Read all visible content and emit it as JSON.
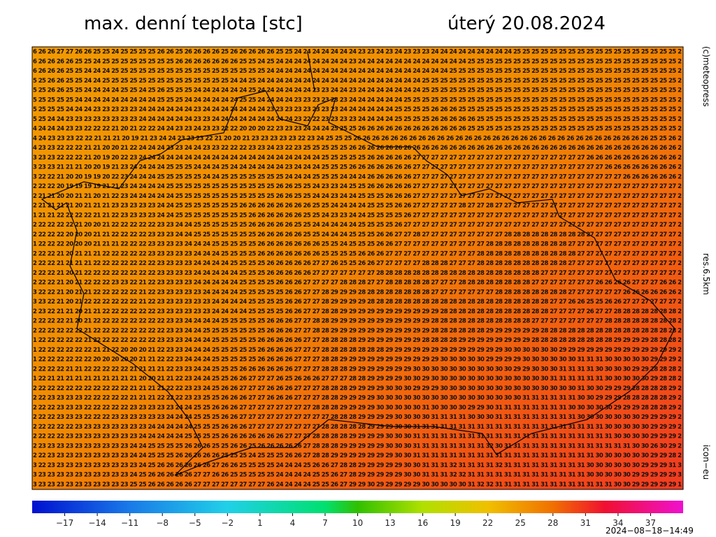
{
  "title": "max. denní teplota [stc]",
  "date": "úterý 20.08.2024",
  "credit": "(c)meteopress",
  "resolution": "res.6.5km",
  "model": "icon−eu",
  "timestamp": "2024−08−18−14:49",
  "grid_rows": [
    "6 26 26 27 27 26 26 25 25 24 25 25 25 25 26 26 25 26 26 26 26 25 26 26 26 26 26 25 25 24 24 24 24 24 24 24 23 23 24 23 24 23 23 23 24 24 24 24 24 24 24 24 24 25 25 25 25 25 25 25 25 25 25 25 25 25 25 25 25 25 25 2",
    "6 26 26 26 26 25 25 24 25 25 25 25 25 25 25 25 26 26 26 26 26 26 26 25 25 24 25 24 24 24 24 24 24 24 24 23 24 24 24 24 24 24 24 24 24 24 24 24 25 25 25 25 25 25 25 25 25 25 25 25 25 25 25 25 25 25 25 25 25 25 25 2",
    "6 26 26 26 25 25 24 24 24 25 25 25 25 25 25 25 25 25 25 25 25 25 25 25 25 25 24 24 24 24 24 24 24 24 24 24 24 24 24 24 24 24 24 24 24 24 25 25 25 25 25 25 25 25 25 25 25 25 25 25 25 25 25 25 25 25 25 25 25 25 25 2",
    "5 25 26 26 25 25 24 24 25 25 25 25 25 25 25 25 25 25 25 25 25 25 24 24 25 24 24 24 24 24 24 24 24 24 24 24 24 24 24 24 24 24 24 25 25 25 25 25 25 25 25 25 25 25 25 25 25 25 25 25 25 25 25 25 25 25 25 25 25 25 25 2",
    "5 25 26 26 25 25 24 24 24 24 25 25 24 25 26 25 25 25 24 24 24 24 24 24 25 24 24 24 24 24 24 23 23 24 24 23 24 24 24 24 24 24 24 25 25 25 25 25 25 25 25 25 25 25 25 25 25 25 25 25 25 25 25 25 25 25 25 25 25 25 25 2",
    "5 25 25 25 25 24 24 24 24 24 24 24 24 24 25 25 25 24 24 24 24 24 24 25 25 24 24 24 24 23 23 23 23 23 23 24 24 24 24 24 24 25 25 25 25 25 25 25 25 25 25 25 25 25 25 25 25 25 25 25 25 25 25 25 25 25 25 25 25 25 25 2",
    "5 25 25 25 24 24 24 23 23 23 23 23 24 24 24 24 24 24 23 24 24 24 24 24 24 24 23 23 23 23 23 23 23 23 24 24 24 24 24 24 25 25 25 25 26 26 26 25 25 25 25 25 25 25 25 25 25 25 25 25 25 25 25 25 25 25 25 25 25 25 25 2",
    "5 25 24 24 23 23 23 23 23 23 23 23 24 24 24 24 24 24 23 23 24 24 24 24 24 24 24 24 24 23 22 22 23 23 23 23 24 24 24 24 25 25 25 25 26 26 26 26 26 25 25 25 25 25 25 25 25 25 25 25 25 25 25 25 25 25 25 25 25 25 25 2",
    "4 24 24 24 23 23 22 22 22 21 20 21 22 22 24 24 23 23 24 23 23 22 22 20 20 20 22 23 23 23 24 24 24 25 25 25 26 26 26 26 26 26 26 26 26 26 26 26 25 25 25 25 25 25 25 25 25 25 25 25 25 25 25 25 25 25 25 25 25 25 25 2",
    "4 24 23 23 23 22 22 21 21 21 20 19 21 23 24 24 23 23 23 22 21 20 20 21 23 23 23 23 23 22 23 24 25 25 25 26 26 26 26 26 26 26 26 26 26 26 26 26 26 26 26 26 26 26 26 26 26 26 26 26 26 26 26 26 26 26 26 25 25 26 2",
    "4 23 23 22 22 22 21 21 20 20 21 22 24 24 24 23 23 24 24 23 23 22 22 22 23 23 24 23 22 23 25 25 25 25 25 26 26 26 26 26 26 26 26 26 26 26 26 26 26 26 26 26 26 26 26 26 26 26 26 26 26 26 26 26 26 26 26 26 26 26 26 2",
    "3 23 23 22 22 22 21 20 19 20 22 23 24 24 24 24 24 24 24 24 24 24 24 24 24 24 24 24 24 24 24 24 25 25 25 25 25 26 26 26 26 26 27 27 27 27 27 27 27 27 27 27 27 27 27 27 27 27 27 27 27 26 26 26 26 26 26 26 26 26 26 2",
    "3 23 23 21 21 21 20 20 19 21 23 24 24 24 24 25 25 25 24 24 24 25 24 24 24 24 24 24 23 24 24 24 25 25 25 26 26 26 26 26 26 26 27 27 27 27 27 27 27 27 27 27 27 27 27 27 27 27 27 27 27 27 27 26 26 26 26 26 26 26 26 2",
    "3 22 22 21 20 20 19 19 20 22 23 24 24 24 25 25 25 25 25 24 24 25 25 25 25 25 25 25 24 24 24 25 25 25 24 24 24 26 26 26 26 26 27 27 27 27 27 27 27 27 27 27 27 27 27 27 27 27 27 27 27 27 27 27 27 26 26 26 26 26 26 2",
    "2 22 22 20 19 19 19 19 21 21 23 24 24 24 24 25 25 25 25 25 25 25 25 25 25 25 25 26 26 25 25 24 23 23 24 25 25 26 26 26 26 26 27 27 27 27 27 27 27 27 27 27 27 27 27 27 27 27 27 27 27 27 27 27 27 27 27 27 27 27 27 2",
    "2 21 21 20 20 21 21 20 21 22 23 24 24 24 24 24 25 25 25 25 25 25 25 25 25 25 25 26 26 25 25 24 24 23 24 24 25 25 25 26 26 26 27 27 27 27 27 27 27 27 27 27 27 27 27 27 27 27 27 27 27 27 27 27 27 27 27 27 27 27 27 2",
    "2 21 21 21 21 20 21 21 21 23 23 23 23 23 24 24 25 25 25 25 25 25 25 26 26 26 26 26 26 26 26 25 25 24 24 24 24 25 25 25 26 26 27 27 27 27 27 28 27 27 28 27 27 27 27 27 27 27 27 27 27 27 27 27 27 27 27 27 27 27 27 2",
    "1 21 21 22 22 22 22 21 21 22 23 23 23 23 24 24 25 25 25 25 25 25 25 25 26 26 26 26 26 26 25 25 24 23 23 24 24 25 25 25 25 26 27 27 27 27 27 27 27 27 27 27 27 27 27 27 27 27 27 27 27 27 27 27 27 27 27 27 27 27 27 2",
    "2 22 22 22 22 21 20 20 21 22 22 22 22 22 23 23 24 24 25 25 25 25 25 25 26 26 26 26 26 25 25 24 24 24 24 24 25 25 25 25 26 27 27 27 27 27 27 27 27 27 27 27 27 27 27 27 27 27 27 27 27 27 27 27 27 27 27 27 27 27 27 2",
    "2 22 22 22 20 20 20 21 21 22 22 22 22 23 23 23 24 24 25 25 25 25 25 25 25 26 26 26 26 26 25 25 24 24 24 25 25 25 26 26 27 27 28 27 27 27 27 27 27 27 27 27 28 28 28 28 28 28 28 28 28 27 27 27 27 27 27 27 27 27 27 2",
    "1 22 22 22 20 20 20 21 21 21 22 22 22 23 23 23 23 24 24 24 25 25 25 25 25 26 26 26 26 26 26 26 25 25 24 25 25 25 26 26 27 27 27 27 27 27 27 27 27 27 28 28 28 28 28 28 28 28 28 27 27 27 27 27 27 27 27 27 27 27 27 2",
    "2 22 22 21 20 21 21 21 22 22 22 22 22 23 23 23 23 23 24 24 24 25 25 25 25 26 26 26 26 26 26 26 25 25 25 25 26 26 26 27 27 27 27 27 27 27 27 27 27 28 28 28 28 28 28 28 28 28 28 28 27 27 27 27 27 27 27 27 27 27 27 2",
    "2 22 22 21 21 21 21 22 22 22 22 22 22 22 23 23 23 23 24 24 24 24 25 25 25 25 26 26 26 26 26 27 27 26 25 25 26 26 27 27 27 27 27 28 28 28 27 27 27 28 28 28 28 28 28 28 28 28 28 27 27 27 27 27 27 27 27 27 27 27 27 2",
    "2 22 22 21 20 21 22 22 22 22 22 22 22 22 23 23 23 23 24 24 24 24 24 25 25 25 26 26 26 26 26 27 27 27 27 27 27 27 28 28 28 28 28 28 28 28 28 28 28 28 28 28 28 28 28 28 27 27 27 27 27 27 27 27 27 27 27 27 27 27 27 2",
    "2 22 22 21 20 21 22 22 22 23 23 22 21 22 23 23 23 23 24 24 24 24 24 25 25 25 25 26 26 26 27 27 27 27 28 28 28 27 27 28 28 28 28 28 27 27 27 28 28 28 28 28 28 28 28 27 27 27 27 27 27 27 26 26 26 26 27 27 27 26 26 2",
    "3 22 22 21 20 21 21 22 22 22 22 22 21 22 23 23 23 23 23 24 24 24 24 25 25 25 25 25 26 26 27 27 28 29 29 29 28 28 28 28 28 28 28 28 27 27 27 27 27 27 27 28 28 28 28 28 28 28 28 27 27 27 27 27 27 26 26 26 26 26 26 2",
    "3 23 22 21 20 21 22 22 22 22 22 22 21 22 23 23 23 23 23 23 24 24 24 24 25 25 25 25 26 26 27 27 28 29 29 29 29 28 28 28 28 28 28 28 28 28 28 28 28 28 28 28 28 28 28 28 28 27 27 26 26 25 25 26 26 27 27 27 27 27 27 2",
    "2 23 22 21 21 20 21 21 22 22 22 22 22 22 23 23 23 23 23 23 24 24 24 24 25 25 25 25 26 26 27 27 28 28 29 29 29 29 29 29 29 29 29 29 29 28 28 28 28 28 28 28 28 28 28 28 28 27 27 27 27 26 27 27 28 28 28 28 28 28 28 2",
    "2 22 22 22 21 20 21 22 22 22 22 22 22 22 22 23 23 24 24 24 24 25 25 25 25 25 26 26 26 27 27 28 28 29 29 29 29 29 29 29 29 29 29 29 28 28 28 28 28 28 28 28 28 28 28 27 27 27 27 27 27 27 27 28 28 28 28 28 28 28 28 2",
    "2 22 22 22 22 22 21 22 22 22 22 22 22 22 22 23 23 24 24 25 25 25 25 25 25 25 26 26 26 27 27 28 28 29 29 29 29 29 29 29 29 29 29 29 28 28 28 28 28 28 29 29 29 29 29 29 28 28 28 28 28 28 28 28 28 28 28 28 28 28 28 2",
    "1 22 22 22 22 22 21 22 22 22 22 22 22 22 23 23 23 24 24 24 25 25 25 25 25 26 26 26 26 26 27 27 28 28 28 28 29 29 29 29 29 29 29 28 28 28 28 29 29 29 29 29 29 29 29 28 28 28 28 28 28 28 28 28 29 29 29 29 28 28 28 2",
    "1 22 22 22 22 22 22 21 21 22 20 20 20 21 22 23 23 24 24 24 25 25 25 25 25 26 26 26 26 27 27 27 28 28 28 28 28 28 28 29 29 29 29 29 29 29 29 29 29 29 29 29 30 30 30 30 30 30 29 29 29 29 29 29 29 29 29 29 29 29 29 2",
    "1 22 22 22 22 22 22 20 20 20 20 20 21 21 22 22 23 24 24 24 25 25 25 25 25 26 26 26 26 27 27 27 28 28 29 29 29 29 29 29 29 29 29 29 29 30 30 30 30 30 29 29 29 29 30 30 30 30 30 30 31 31 31 30 30 30 30 30 29 29 29 2",
    "2 22 22 22 21 21 22 22 22 22 22 21 21 21 21 22 23 23 24 24 25 25 25 26 26 26 26 26 26 27 27 27 28 28 28 29 29 29 29 29 29 29 30 30 30 30 30 30 30 30 30 30 30 29 29 30 30 30 31 31 31 31 30 30 30 30 29 29 28 28 28 2",
    "1 22 21 21 21 21 21 21 21 21 21 21 20 20 21 21 22 23 24 24 25 25 26 26 27 27 27 26 25 26 26 26 27 27 27 28 28 29 29 29 29 30 30 29 30 30 30 30 30 30 30 30 30 30 30 30 30 31 31 31 31 31 31 30 30 30 30 30 29 28 28 2",
    "2 22 22 22 22 22 22 22 22 22 22 21 21 21 21 22 22 23 23 24 25 26 26 27 27 27 26 26 26 27 27 27 28 28 28 29 29 29 29 30 30 30 29 29 29 30 30 30 30 30 30 30 30 30 30 30 30 30 30 30 31 30 30 29 29 29 28 28 28 28 29 2",
    "2 22 23 23 23 23 22 22 22 22 22 21 21 21 22 22 22 23 23 25 25 26 26 26 27 27 26 26 26 27 27 27 28 28 29 29 29 29 30 30 30 30 30 30 30 30 30 30 30 30 30 30 30 30 31 31 31 31 31 31 30 30 29 29 29 28 28 28 28 28 29 2",
    "2 22 22 23 23 23 22 22 22 22 22 23 23 23 23 23 24 24 25 25 26 26 26 27 27 27 27 27 27 27 27 28 28 28 29 29 29 29 30 30 30 30 30 31 30 30 30 30 29 29 30 31 31 31 31 31 31 31 31 30 30 30 30 30 29 29 29 28 28 28 29 2",
    "2 22 22 23 23 23 22 22 22 23 23 23 23 23 23 24 24 24 25 25 25 26 26 27 27 27 27 27 27 27 27 27 27 28 28 28 29 29 29 29 30 30 30 30 31 31 31 31 30 30 30 31 31 31 31 31 31 31 31 31 30 30 30 30 30 30 30 29 29 29 29 2",
    "2 22 22 22 22 23 23 23 23 23 23 23 23 24 24 24 24 24 25 25 25 26 26 26 27 27 27 27 27 27 27 27 28 28 28 28 28 29 29 29 30 30 31 31 31 31 31 31 31 31 31 31 31 31 31 31 31 31 31 31 31 31 31 30 30 30 30 30 29 29 29 2",
    "2 22 22 22 23 23 23 23 23 23 23 23 24 24 24 24 24 25 25 25 25 26 26 26 26 26 26 26 27 27 27 28 28 28 28 29 29 29 29 30 30 30 31 31 31 31 31 31 31 31 31 31 31 31 31 31 31 31 31 31 31 31 31 31 30 30 30 30 29 29 29 2",
    "2 23 23 23 23 23 23 23 23 23 23 24 24 25 25 25 25 26 26 26 25 25 26 26 25 26 26 26 26 26 27 28 28 28 29 29 29 29 29 30 30 30 31 31 31 31 31 31 31 31 32 30 31 31 31 31 31 31 31 31 31 31 31 31 31 31 30 30 26 30 29 2",
    "2 22 23 23 23 23 23 23 23 23 23 24 24 25 25 25 26 26 26 26 26 25 25 25 24 25 25 25 26 26 27 28 28 29 29 29 29 29 29 29 30 30 31 31 31 31 31 31 31 31 31 31 31 31 31 31 31 31 31 31 31 31 30 30 30 30 30 30 29 29 28 2",
    "3 22 23 23 23 23 23 23 23 23 23 23 24 25 26 26 26 26 26 26 27 26 26 25 25 25 25 24 24 24 25 26 26 27 28 28 29 29 29 29 29 30 30 31 31 31 32 31 31 31 31 32 31 31 31 31 31 31 31 31 31 30 30 30 30 30 30 29 29 29 31 3",
    "3 23 23 23 23 23 23 23 23 23 23 24 25 26 26 26 26 26 27 27 26 26 25 25 25 25 25 24 24 24 24 25 25 26 27 28 29 29 29 29 29 30 30 31 31 31 32 32 31 31 31 31 31 31 31 31 31 31 31 31 31 30 30 30 30 30 29 29 29 29 29 3",
    "3 23 23 23 23 23 23 23 23 23 23 25 25 26 26 26 26 26 27 27 27 27 27 27 27 27 26 24 24 24 24 25 25 26 27 29 29 30 29 29 29 29 29 30 30 30 30 30 31 32 32 31 31 31 31 31 31 31 31 31 31 31 31 31 30 30 29 29 29 29 29 1"
  ],
  "colorbar": {
    "lim": [
      -20,
      40
    ],
    "ticks": [
      {
        "value": -17,
        "label": "−17"
      },
      {
        "value": -14,
        "label": "−14"
      },
      {
        "value": -11,
        "label": "−11"
      },
      {
        "value": -8,
        "label": "−8"
      },
      {
        "value": -5,
        "label": "−5"
      },
      {
        "value": -2,
        "label": "−2"
      },
      1,
      4,
      7,
      10,
      13,
      16,
      19,
      22,
      25,
      28,
      31,
      34,
      37
    ]
  }
}
